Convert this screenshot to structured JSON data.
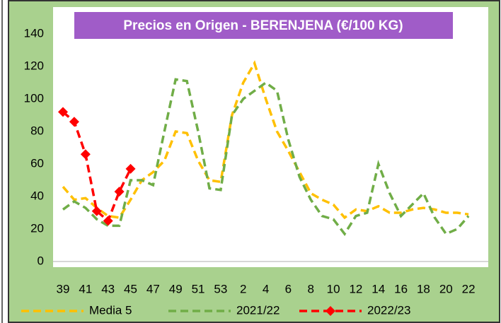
{
  "chart_data": {
    "type": "line",
    "title": "Precios en Origen - BERENJENA (€/100 KG)",
    "categories": [
      "39",
      null,
      "41",
      null,
      "43",
      null,
      "45",
      null,
      "47",
      null,
      "49",
      null,
      "51",
      null,
      "53",
      null,
      "2",
      null,
      "4",
      null,
      "6",
      null,
      "8",
      null,
      "10",
      null,
      "12",
      null,
      "14",
      null,
      "16",
      null,
      "18",
      null,
      "20",
      null,
      "22"
    ],
    "series": [
      {
        "name": "Media 5",
        "color": "#ffc000",
        "values": [
          46,
          38,
          39,
          33,
          28,
          27,
          38,
          50,
          55,
          62,
          80,
          79,
          62,
          50,
          49,
          90,
          110,
          122,
          100,
          80,
          68,
          55,
          42,
          38,
          35,
          27,
          32,
          31,
          34,
          30,
          30,
          32,
          33,
          32,
          30,
          30,
          29
        ]
      },
      {
        "name": "2021/22",
        "color": "#70ad47",
        "values": [
          32,
          37,
          33,
          26,
          22,
          22,
          50,
          50,
          47,
          80,
          112,
          111,
          80,
          45,
          44,
          90,
          100,
          105,
          110,
          105,
          75,
          52,
          38,
          28,
          26,
          17,
          28,
          30,
          60,
          42,
          28,
          35,
          42,
          27,
          17,
          20,
          28
        ]
      },
      {
        "name": "2022/23",
        "color": "#ff0000",
        "markers": true,
        "values": [
          92,
          86,
          66,
          31,
          25,
          43,
          57,
          null,
          null,
          null,
          null,
          null,
          null,
          null,
          null,
          null,
          null,
          null,
          null,
          null,
          null,
          null,
          null,
          null,
          null,
          null,
          null,
          null,
          null,
          null,
          null,
          null,
          null,
          null,
          null,
          null,
          null
        ]
      }
    ],
    "ylim": [
      0,
      140
    ],
    "yticks": [
      0,
      20,
      40,
      60,
      80,
      100,
      120,
      140
    ],
    "grid": false
  }
}
